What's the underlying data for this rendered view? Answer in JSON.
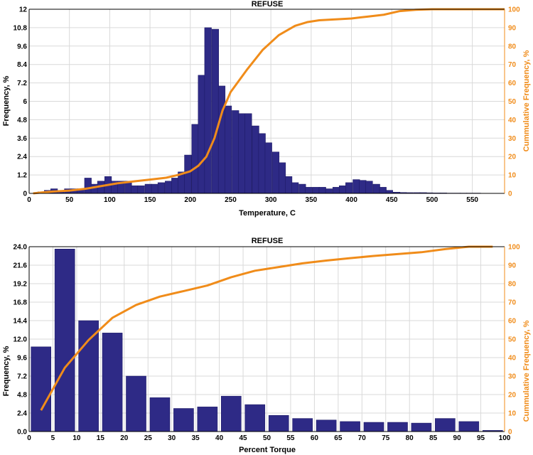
{
  "colors": {
    "bar": "#2e2a86",
    "bar_edge": "#1a1760",
    "line": "#f08c1a",
    "grid": "#d9d9d9"
  },
  "chart_data": [
    {
      "type": "bar",
      "title": "REFUSE",
      "xlabel": "Temperature, C",
      "ylabel": "Frequency, %",
      "y2label": "Cummulative Frequency, %",
      "xlim": [
        0,
        590
      ],
      "ylim": [
        0,
        12
      ],
      "y2lim": [
        0,
        100
      ],
      "xticks": [
        0,
        50,
        100,
        150,
        200,
        250,
        300,
        350,
        400,
        450,
        500,
        550
      ],
      "yticks": [
        "0",
        "1.2",
        "2.4",
        "3.6",
        "4.8",
        "6",
        "7.2",
        "8.4",
        "9.6",
        "10.8",
        "12"
      ],
      "y2ticks": [
        0,
        10,
        20,
        30,
        40,
        50,
        60,
        70,
        80,
        90,
        100
      ],
      "bin_width": 8.5,
      "x": [
        15,
        23,
        31,
        39,
        48,
        56,
        64,
        73,
        81,
        89,
        98,
        106,
        114,
        123,
        131,
        139,
        148,
        156,
        164,
        173,
        181,
        189,
        197,
        206,
        214,
        222,
        231,
        239,
        247,
        256,
        264,
        272,
        281,
        289,
        297,
        306,
        314,
        322,
        330,
        339,
        347,
        356,
        364,
        372,
        381,
        389,
        397,
        406,
        414,
        422,
        431,
        439,
        447,
        456,
        464,
        472,
        481,
        489,
        497,
        506,
        514,
        522,
        531,
        539,
        547,
        556,
        564,
        572,
        580
      ],
      "values": [
        0.1,
        0.2,
        0.3,
        0.1,
        0.3,
        0.3,
        0.3,
        1.0,
        0.6,
        0.8,
        1.1,
        0.8,
        0.8,
        0.8,
        0.5,
        0.5,
        0.6,
        0.6,
        0.7,
        0.8,
        1.0,
        1.4,
        2.5,
        4.5,
        7.7,
        10.8,
        10.7,
        7.0,
        5.7,
        5.4,
        5.2,
        5.2,
        4.4,
        3.9,
        3.3,
        2.7,
        2.0,
        1.1,
        0.7,
        0.6,
        0.4,
        0.4,
        0.4,
        0.3,
        0.4,
        0.5,
        0.7,
        0.9,
        0.85,
        0.8,
        0.6,
        0.4,
        0.2,
        0.08,
        0.06,
        0.05,
        0.05,
        0.05,
        0.04,
        0.03,
        0.03,
        0.02,
        0.02,
        0.02,
        0.02,
        0.02,
        0.01,
        0.01,
        0.01
      ],
      "cumulative": {
        "x": [
          5,
          15,
          30,
          50,
          70,
          90,
          110,
          130,
          150,
          170,
          185,
          200,
          210,
          220,
          230,
          240,
          250,
          270,
          290,
          310,
          330,
          345,
          360,
          380,
          400,
          420,
          440,
          460,
          480,
          500,
          540,
          590
        ],
        "y": [
          0,
          0.5,
          1,
          1.5,
          2.5,
          4,
          5.5,
          6.5,
          7.5,
          8.5,
          10,
          12,
          15,
          20,
          30,
          45,
          55,
          67,
          78,
          86,
          91,
          93,
          94,
          94.5,
          95,
          96,
          97,
          99,
          99.7,
          100,
          100,
          100
        ]
      }
    },
    {
      "type": "bar",
      "title": "REFUSE",
      "xlabel": "Percent Torque",
      "ylabel": "Frequency, %",
      "y2label": "Cummulative Frequency, %",
      "xlim": [
        0,
        100
      ],
      "ylim": [
        0,
        24
      ],
      "y2lim": [
        0,
        100
      ],
      "xticks": [
        0,
        5,
        10,
        15,
        20,
        25,
        30,
        35,
        40,
        45,
        50,
        55,
        60,
        65,
        70,
        75,
        80,
        85,
        90,
        95,
        100
      ],
      "yticks": [
        "0.0",
        "2.4",
        "4.8",
        "7.2",
        "9.6",
        "12.0",
        "14.4",
        "16.8",
        "19.2",
        "21.6",
        "24.0"
      ],
      "y2ticks": [
        0,
        10,
        20,
        30,
        40,
        50,
        60,
        70,
        80,
        90,
        100
      ],
      "bin_width": 4.2,
      "x": [
        2.5,
        7.5,
        12.5,
        17.5,
        22.5,
        27.5,
        32.5,
        37.5,
        42.5,
        47.5,
        52.5,
        57.5,
        62.5,
        67.5,
        72.5,
        77.5,
        82.5,
        87.5,
        92.5,
        97.5
      ],
      "values": [
        11.0,
        23.7,
        14.4,
        12.8,
        7.2,
        4.4,
        3.0,
        3.2,
        4.6,
        3.5,
        2.1,
        1.7,
        1.5,
        1.3,
        1.2,
        1.2,
        1.1,
        1.7,
        1.3,
        0.15
      ],
      "cumulative": {
        "x": [
          2.5,
          7.5,
          12.5,
          17.5,
          22.5,
          27.5,
          32.5,
          37.5,
          42.5,
          47.5,
          52.5,
          57.5,
          62.5,
          67.5,
          72.5,
          77.5,
          82.5,
          87.5,
          92.5,
          97.5
        ],
        "y": [
          11.5,
          34.5,
          49.5,
          61.5,
          68.5,
          73,
          76,
          79,
          83.5,
          87,
          89,
          91,
          92.5,
          93.8,
          95,
          96,
          97,
          98.7,
          100,
          100
        ]
      }
    }
  ]
}
